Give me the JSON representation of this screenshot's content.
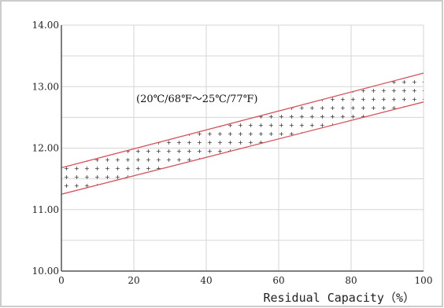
{
  "chart_data": {
    "type": "area",
    "xlabel": "Residual Capacity（%）",
    "ylabel": "",
    "xlim": [
      0,
      100
    ],
    "ylim": [
      10,
      14
    ],
    "x_ticks": [
      "0",
      "20",
      "40",
      "60",
      "80",
      "100"
    ],
    "y_ticks": [
      "10.00",
      "11.00",
      "12.00",
      "13.00",
      "14.00"
    ],
    "grid": true,
    "annotation": "(20℃/68℉～25℃/77℉)",
    "series": [
      {
        "x": [
          0,
          100
        ],
        "values": [
          11.68,
          13.22
        ]
      },
      {
        "x": [
          0,
          100
        ],
        "values": [
          11.25,
          12.75
        ]
      }
    ],
    "colors": {
      "band_lines": "#d9525e",
      "grid": "#d6d6d6",
      "axis": "#555555",
      "frame": "#bbbbbb"
    }
  }
}
